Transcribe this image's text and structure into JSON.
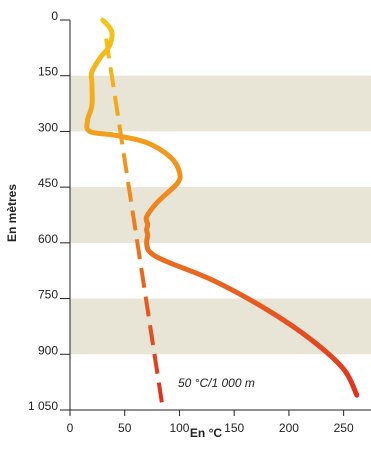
{
  "chart_data": {
    "type": "line",
    "xlabel": "En °C",
    "ylabel": "En mètres",
    "xlim": [
      0,
      275
    ],
    "ylim": [
      0,
      1050
    ],
    "y_inverted": true,
    "x_ticks": [
      "0",
      "50",
      "100",
      "150",
      "200",
      "250"
    ],
    "x_tick_values": [
      0,
      50,
      100,
      150,
      200,
      250
    ],
    "y_ticks": [
      "0",
      "150",
      "300",
      "450",
      "600",
      "750",
      "900",
      "1 050"
    ],
    "y_tick_values": [
      0,
      150,
      300,
      450,
      600,
      750,
      900,
      1050
    ],
    "background_bands": [
      [
        150,
        300
      ],
      [
        450,
        600
      ],
      [
        750,
        900
      ]
    ],
    "colors": {
      "band": "#e8e5d6",
      "axis": "#222222",
      "gradient_top": "#f5c518",
      "gradient_mid": "#f08a1e",
      "gradient_bottom": "#e02a1f"
    },
    "annotation": "50 °C/1 000 m",
    "series": [
      {
        "style": "solid",
        "points": [
          [
            30,
            0
          ],
          [
            38,
            30
          ],
          [
            36,
            70
          ],
          [
            28,
            100
          ],
          [
            20,
            140
          ],
          [
            20,
            170
          ],
          [
            20,
            230
          ],
          [
            16,
            270
          ],
          [
            18,
            300
          ],
          [
            40,
            310
          ],
          [
            70,
            330
          ],
          [
            92,
            370
          ],
          [
            100,
            410
          ],
          [
            98,
            440
          ],
          [
            80,
            490
          ],
          [
            70,
            530
          ],
          [
            71,
            550
          ],
          [
            70,
            565
          ],
          [
            71,
            580
          ],
          [
            70,
            600
          ],
          [
            73,
            625
          ],
          [
            88,
            650
          ],
          [
            130,
            700
          ],
          [
            180,
            780
          ],
          [
            220,
            860
          ],
          [
            250,
            940
          ],
          [
            262,
            1010
          ]
        ]
      },
      {
        "style": "dashed",
        "points": [
          [
            33,
            50
          ],
          [
            85,
            1050
          ]
        ]
      }
    ]
  }
}
